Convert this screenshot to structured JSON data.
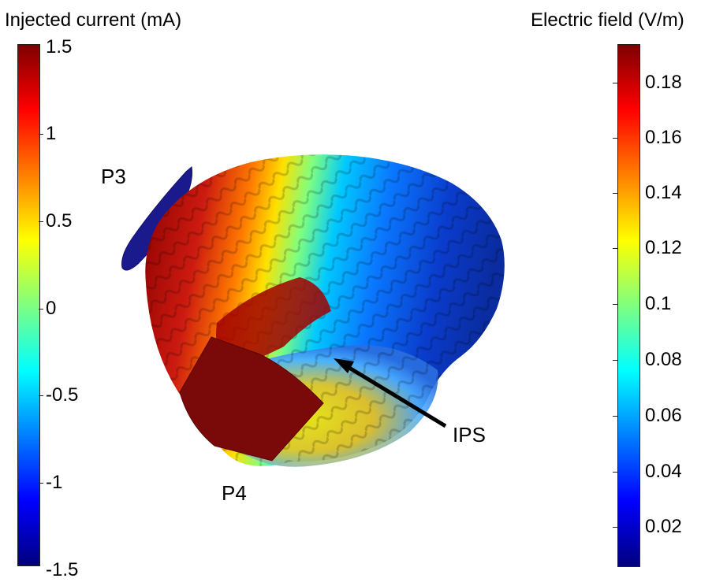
{
  "left_colorbar": {
    "title": "Injected current (mA)",
    "ticks": [
      "1.5",
      "1",
      "0.5",
      "0",
      "-0.5",
      "-1",
      "-1.5"
    ]
  },
  "right_colorbar": {
    "title": "Electric field (V/m)",
    "ticks": [
      "0.18",
      "0.16",
      "0.14",
      "0.12",
      "0.1",
      "0.08",
      "0.06",
      "0.04",
      "0.02"
    ]
  },
  "labels": {
    "p3": "P3",
    "p4": "P4",
    "ips": "IPS"
  },
  "colors": {
    "colormap_low": "#00007f",
    "colormap_high": "#7f0000",
    "electrode_p3": "#1a1a8c",
    "electrode_p4": "#7a0a0a"
  }
}
